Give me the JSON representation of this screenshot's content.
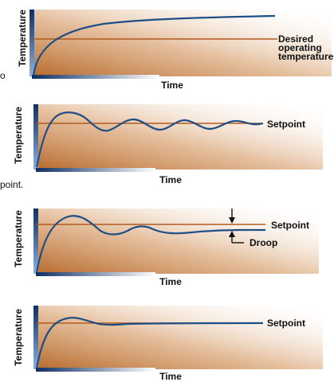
{
  "labels": {
    "time": "Time",
    "temperature": "Temperature",
    "desired_line1": "Desired",
    "desired_line2": "operating",
    "desired_line3": "temperature",
    "setpoint": "Setpoint",
    "droop": "Droop",
    "cropped_text": "point.",
    "cropped_fragment": "o"
  },
  "colors": {
    "curve": "#1f4e85",
    "setpoint_line": "#b35a1f",
    "shade_dark": "#b86b2d",
    "shade_light": "#ffffff",
    "axis_dark": "#0f2f63",
    "axis_light": "#7fa6d6",
    "text": "#111111"
  },
  "panels": [
    {
      "kind": "first-order-rise",
      "annotation": "desired-operating-temperature"
    },
    {
      "kind": "underdamped-oscillation",
      "annotation": "setpoint"
    },
    {
      "kind": "damped-with-droop",
      "annotation": "setpoint-droop"
    },
    {
      "kind": "well-damped",
      "annotation": "setpoint"
    }
  ]
}
